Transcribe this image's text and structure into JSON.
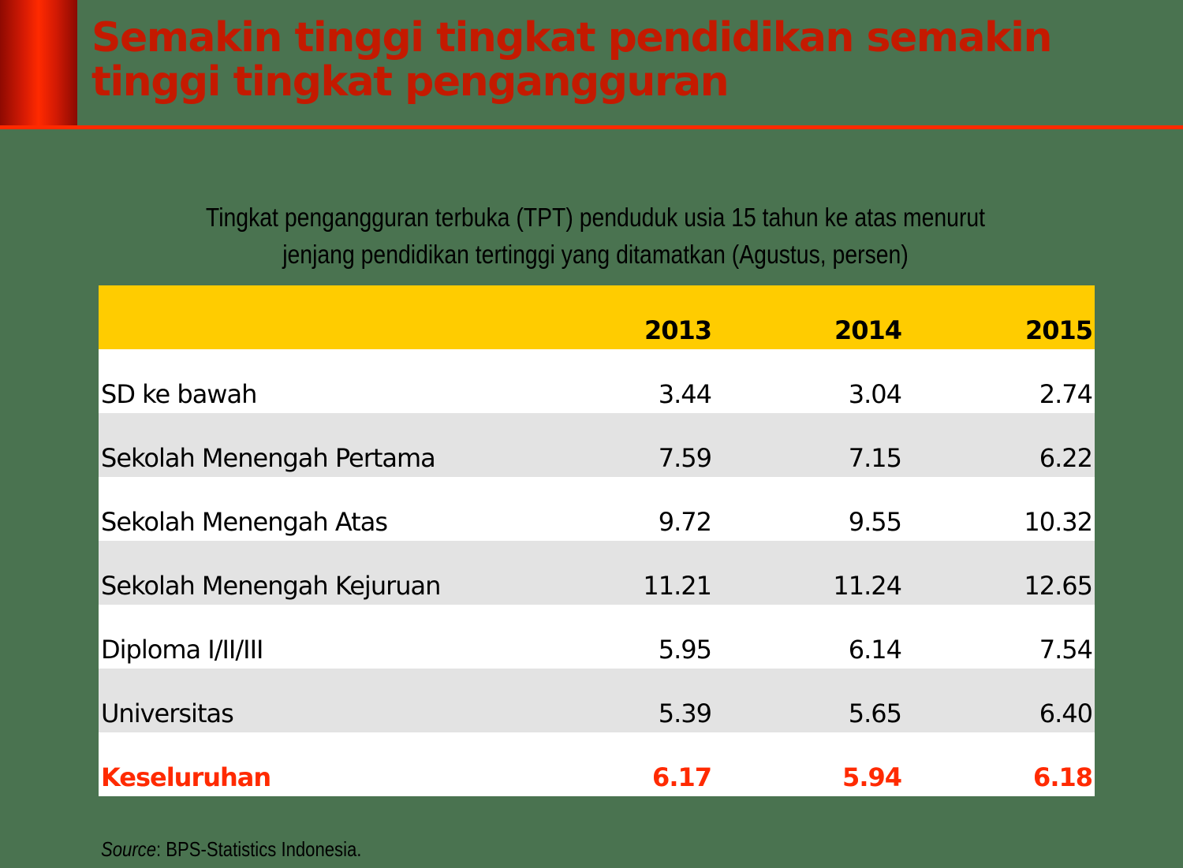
{
  "slide": {
    "title": "Semakin tinggi tingkat pendidikan semakin tinggi tingkat pengangguran",
    "subtitle_line1": "Tingkat pengangguran terbuka (TPT) penduduk usia 15 tahun ke atas menurut",
    "subtitle_line2": "jenjang pendidikan tertinggi yang ditamatkan (Agustus, persen)",
    "source_label": "Source",
    "source_text": ": BPS-Statistics Indonesia.",
    "colors": {
      "background": "#4A7350",
      "title": "#C41A00",
      "accent": "#FF2A00",
      "header_fill": "#FFCC00",
      "row_alt": "#E3E3E3",
      "total_text": "#FF2A00"
    }
  },
  "table": {
    "header": [
      "",
      "2013",
      "2014",
      "2015"
    ],
    "rows": [
      {
        "label": "SD ke bawah",
        "v2013": "3.44",
        "v2014": "3.04",
        "v2015": "2.74"
      },
      {
        "label": "Sekolah Menengah Pertama",
        "v2013": "7.59",
        "v2014": "7.15",
        "v2015": "6.22"
      },
      {
        "label": "Sekolah Menengah Atas",
        "v2013": "9.72",
        "v2014": "9.55",
        "v2015": "10.32"
      },
      {
        "label": "Sekolah Menengah Kejuruan",
        "v2013": "11.21",
        "v2014": "11.24",
        "v2015": "12.65"
      },
      {
        "label": "Diploma I/II/III",
        "v2013": "5.95",
        "v2014": "6.14",
        "v2015": "7.54"
      },
      {
        "label": "Universitas",
        "v2013": "5.39",
        "v2014": "5.65",
        "v2015": "6.40"
      }
    ],
    "total": {
      "label": "Keseluruhan",
      "v2013": "6.17",
      "v2014": "5.94",
      "v2015": "6.18"
    }
  },
  "chart_data": {
    "type": "table",
    "title": "Tingkat pengangguran terbuka (TPT) penduduk usia 15 tahun ke atas menurut jenjang pendidikan tertinggi yang ditamatkan (Agustus, persen)",
    "categories": [
      "SD ke bawah",
      "Sekolah Menengah Pertama",
      "Sekolah Menengah Atas",
      "Sekolah Menengah Kejuruan",
      "Diploma I/II/III",
      "Universitas",
      "Keseluruhan"
    ],
    "columns": [
      "2013",
      "2014",
      "2015"
    ],
    "series": [
      {
        "name": "2013",
        "values": [
          3.44,
          7.59,
          9.72,
          11.21,
          5.95,
          5.39,
          6.17
        ]
      },
      {
        "name": "2014",
        "values": [
          3.04,
          7.15,
          9.55,
          11.24,
          6.14,
          5.65,
          5.94
        ]
      },
      {
        "name": "2015",
        "values": [
          2.74,
          6.22,
          10.32,
          12.65,
          7.54,
          6.4,
          6.18
        ]
      }
    ],
    "unit": "persen",
    "source": "BPS-Statistics Indonesia."
  }
}
